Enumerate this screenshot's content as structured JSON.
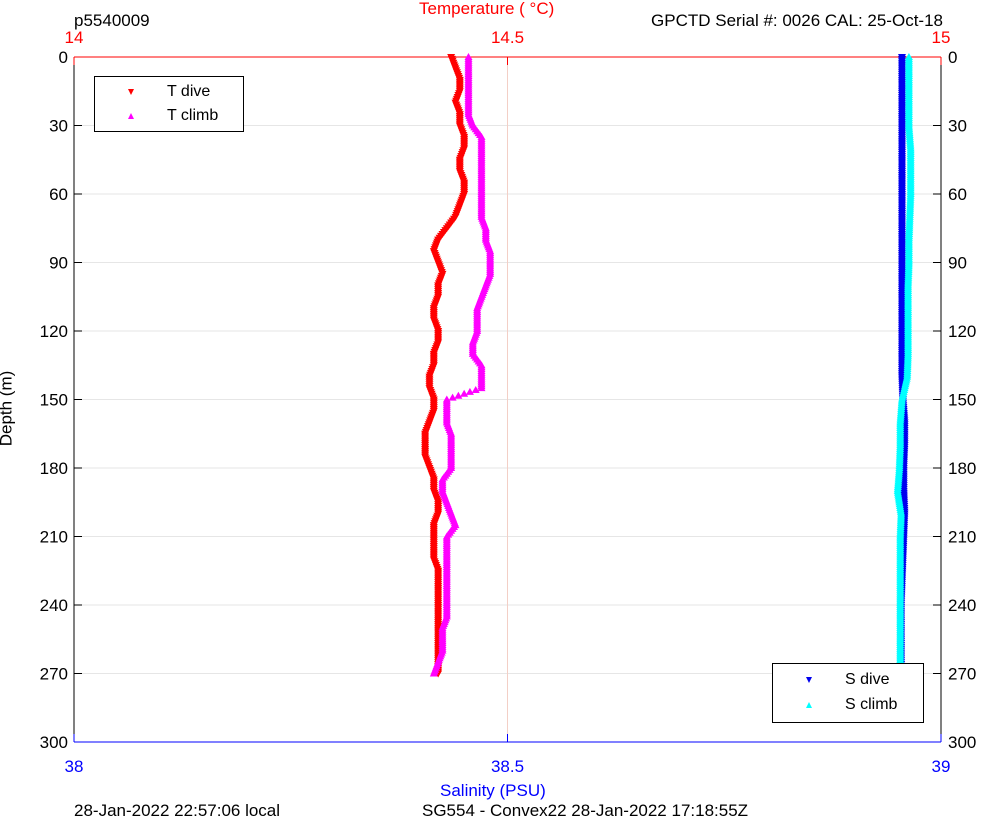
{
  "header": {
    "profile_id": "p5540009",
    "sensor_info": "GPCTD Serial #: 0026 CAL: 25-Oct-18"
  },
  "footer": {
    "local_time": "28-Jan-2022 22:57:06 local",
    "mission_info": "SG554 - Convex22 28-Jan-2022 17:18:55Z"
  },
  "colors": {
    "t_dive": "#ff0000",
    "t_climb": "#ff00ff",
    "s_dive": "#0000ee",
    "s_climb": "#00ffff",
    "temp_axis": "#ff0000",
    "sal_axis": "#0000ff"
  },
  "chart_data": {
    "type": "scatter",
    "ylabel": "Depth (m)",
    "ylim": [
      0,
      300
    ],
    "y_reversed": true,
    "yticks": [
      "0",
      "30",
      "60",
      "90",
      "120",
      "150",
      "180",
      "210",
      "240",
      "270",
      "300"
    ],
    "temperature_axis": {
      "label": "Temperature (    °C)",
      "position": "top",
      "range": [
        14,
        15
      ],
      "ticks": [
        "14",
        "14.5",
        "15"
      ]
    },
    "salinity_axis": {
      "label": "Salinity (PSU)",
      "position": "bottom",
      "range": [
        38,
        39
      ],
      "ticks": [
        "38",
        "38.5",
        "39"
      ]
    },
    "grid": true,
    "legends": [
      {
        "placement": "top-left",
        "entries": [
          {
            "name": "T dive",
            "series": "t_dive",
            "marker": "triangle-down"
          },
          {
            "name": "T climb",
            "series": "t_climb",
            "marker": "triangle-up"
          }
        ]
      },
      {
        "placement": "bottom-right",
        "entries": [
          {
            "name": "S dive",
            "series": "s_dive",
            "marker": "triangle-down"
          },
          {
            "name": "S climb",
            "series": "s_climb",
            "marker": "triangle-up"
          }
        ]
      }
    ],
    "series": [
      {
        "name": "T dive",
        "key": "t_dive",
        "axis": "temperature",
        "depth": [
          0,
          5,
          10,
          15,
          20,
          25,
          30,
          35,
          40,
          45,
          50,
          55,
          60,
          65,
          70,
          75,
          80,
          85,
          90,
          95,
          100,
          105,
          110,
          115,
          120,
          125,
          130,
          135,
          140,
          145,
          150,
          155,
          160,
          165,
          170,
          175,
          180,
          185,
          190,
          195,
          200,
          205,
          210,
          215,
          220,
          225,
          230,
          235,
          240,
          245,
          250,
          255,
          260,
          265,
          270
        ],
        "values": [
          14.435,
          14.44,
          14.445,
          14.445,
          14.44,
          14.445,
          14.445,
          14.45,
          14.45,
          14.445,
          14.445,
          14.45,
          14.45,
          14.445,
          14.44,
          14.43,
          14.42,
          14.415,
          14.42,
          14.425,
          14.42,
          14.42,
          14.415,
          14.415,
          14.42,
          14.42,
          14.415,
          14.415,
          14.41,
          14.41,
          14.415,
          14.415,
          14.41,
          14.405,
          14.405,
          14.405,
          14.41,
          14.415,
          14.415,
          14.42,
          14.42,
          14.415,
          14.415,
          14.415,
          14.415,
          14.42,
          14.42,
          14.42,
          14.42,
          14.42,
          14.42,
          14.42,
          14.42,
          14.42,
          14.42
        ]
      },
      {
        "name": "T climb",
        "key": "t_climb",
        "axis": "temperature",
        "depth": [
          0,
          5,
          10,
          15,
          20,
          25,
          30,
          35,
          40,
          45,
          50,
          55,
          60,
          65,
          70,
          75,
          80,
          85,
          90,
          95,
          100,
          105,
          110,
          115,
          120,
          125,
          130,
          135,
          140,
          145,
          150,
          155,
          160,
          165,
          170,
          175,
          180,
          185,
          190,
          195,
          200,
          205,
          210,
          215,
          220,
          225,
          230,
          235,
          240,
          245,
          250,
          255,
          260,
          265,
          270
        ],
        "values": [
          14.455,
          14.455,
          14.455,
          14.455,
          14.455,
          14.455,
          14.46,
          14.47,
          14.47,
          14.47,
          14.47,
          14.47,
          14.47,
          14.47,
          14.47,
          14.475,
          14.475,
          14.48,
          14.48,
          14.48,
          14.475,
          14.47,
          14.465,
          14.465,
          14.465,
          14.46,
          14.46,
          14.47,
          14.47,
          14.47,
          14.43,
          14.43,
          14.43,
          14.435,
          14.435,
          14.435,
          14.435,
          14.425,
          14.425,
          14.43,
          14.435,
          14.44,
          14.43,
          14.43,
          14.43,
          14.43,
          14.43,
          14.43,
          14.43,
          14.43,
          14.425,
          14.425,
          14.425,
          14.42,
          14.415
        ]
      },
      {
        "name": "S dive",
        "key": "s_dive",
        "axis": "salinity",
        "depth": [
          0,
          10,
          20,
          30,
          40,
          50,
          60,
          70,
          80,
          90,
          100,
          110,
          120,
          130,
          140,
          150,
          160,
          170,
          180,
          190,
          200,
          210,
          220,
          230,
          240,
          250,
          260,
          270
        ],
        "values": [
          38.955,
          38.955,
          38.955,
          38.955,
          38.955,
          38.955,
          38.955,
          38.955,
          38.955,
          38.955,
          38.955,
          38.955,
          38.955,
          38.955,
          38.955,
          38.956,
          38.958,
          38.958,
          38.957,
          38.957,
          38.958,
          38.957,
          38.956,
          38.955,
          38.954,
          38.954,
          38.954,
          38.954
        ]
      },
      {
        "name": "S climb",
        "key": "s_climb",
        "axis": "salinity",
        "depth": [
          0,
          10,
          20,
          30,
          40,
          50,
          60,
          70,
          80,
          90,
          100,
          110,
          120,
          130,
          140,
          150,
          160,
          170,
          180,
          190,
          200,
          210,
          220,
          230,
          240,
          250,
          260,
          270
        ],
        "values": [
          38.963,
          38.963,
          38.963,
          38.963,
          38.965,
          38.965,
          38.965,
          38.964,
          38.963,
          38.963,
          38.962,
          38.962,
          38.962,
          38.962,
          38.961,
          38.955,
          38.953,
          38.953,
          38.952,
          38.95,
          38.954,
          38.953,
          38.953,
          38.953,
          38.953,
          38.953,
          38.953,
          38.953
        ]
      }
    ]
  }
}
